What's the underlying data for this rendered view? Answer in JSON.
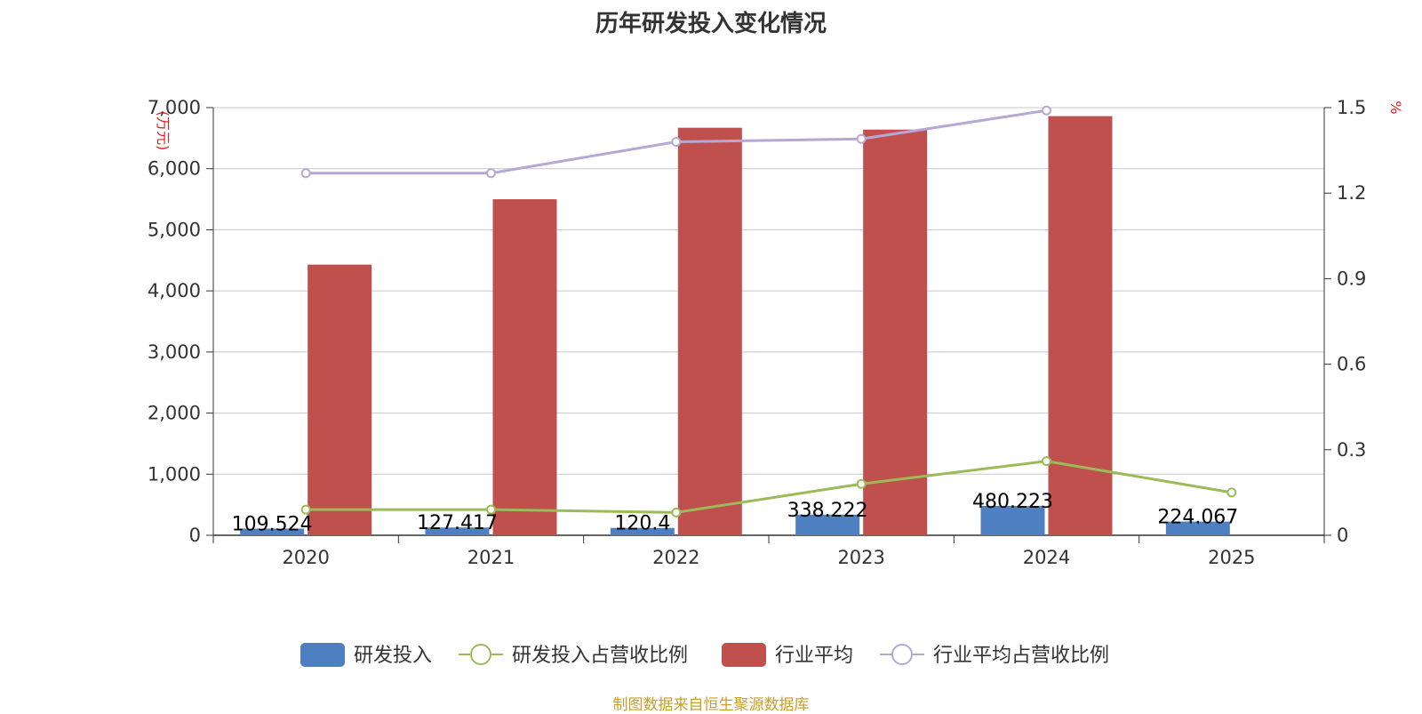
{
  "source_note": "制图数据来自恒生聚源数据库",
  "colors": {
    "rd_bar": "#4e7fc0",
    "industry_bar": "#c0504d",
    "rd_ratio_line": "#9bbb59",
    "industry_ratio_line": "#b6a8d4",
    "grid": "#c8c8c8",
    "axis": "#333333",
    "unit_text": "#e02020"
  },
  "chart_data": {
    "type": "bar",
    "title": "历年研发投入变化情况",
    "categories": [
      "2020",
      "2021",
      "2022",
      "2023",
      "2024",
      "2025"
    ],
    "y_left": {
      "label": "(万元)",
      "ylim": [
        0,
        7000
      ],
      "ticks": [
        0,
        1000,
        2000,
        3000,
        4000,
        5000,
        6000,
        7000
      ],
      "tick_labels": [
        "0",
        "1,000",
        "2,000",
        "3,000",
        "4,000",
        "5,000",
        "6,000",
        "7,000"
      ]
    },
    "y_right": {
      "label": "%",
      "ylim": [
        0,
        1.5
      ],
      "ticks": [
        0,
        0.3,
        0.6,
        0.9,
        1.2,
        1.5
      ],
      "tick_labels": [
        "0",
        "0.3",
        "0.6",
        "0.9",
        "1.2",
        "1.5"
      ]
    },
    "grid": true,
    "legend_position": "bottom",
    "series": [
      {
        "name": "研发投入",
        "type": "bar",
        "axis": "left",
        "values": [
          109.524,
          127.417,
          120.4,
          338.222,
          480.223,
          224.067
        ],
        "data_labels": [
          "109.524",
          "127.417",
          "120.4",
          "338.222",
          "480.223",
          "224.067"
        ]
      },
      {
        "name": "研发投入占营收比例",
        "type": "line",
        "axis": "right",
        "values": [
          0.09,
          0.09,
          0.08,
          0.18,
          0.26,
          0.15
        ]
      },
      {
        "name": "行业平均",
        "type": "bar",
        "axis": "left",
        "values": [
          4430,
          5500,
          6670,
          6640,
          6860,
          null
        ]
      },
      {
        "name": "行业平均占营收比例",
        "type": "line",
        "axis": "right",
        "values": [
          1.27,
          1.27,
          1.38,
          1.39,
          1.49,
          null
        ]
      }
    ]
  }
}
